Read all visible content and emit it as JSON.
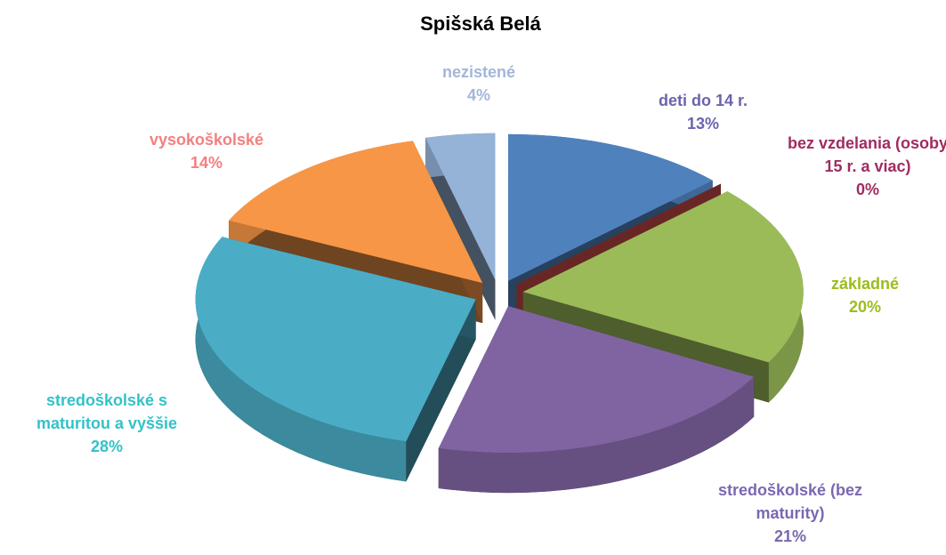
{
  "chart_data": {
    "type": "pie",
    "title": "Spišská Belá",
    "categories": [
      "deti do 14 r.",
      "bez vzdelania (osoby 15 r. a viac)",
      "základné",
      "stredoškolské (bez maturity)",
      "stredoškolské s maturitou a vyššie",
      "vysokoškolské",
      "nezistené"
    ],
    "values": [
      13,
      0,
      20,
      21,
      28,
      14,
      4
    ],
    "value_labels": [
      "13%",
      "0%",
      "20%",
      "21%",
      "28%",
      "14%",
      "4%"
    ],
    "colors": [
      "#4f81bd",
      "#953735",
      "#9bbb59",
      "#8064a2",
      "#4bacc6",
      "#f79646",
      "#95b3d7"
    ],
    "label_colors": [
      "#6a64ad",
      "#a02b62",
      "#9cbc1c",
      "#7b68b1",
      "#33c2c8",
      "#f47f7f",
      "#a3b6d9"
    ]
  }
}
